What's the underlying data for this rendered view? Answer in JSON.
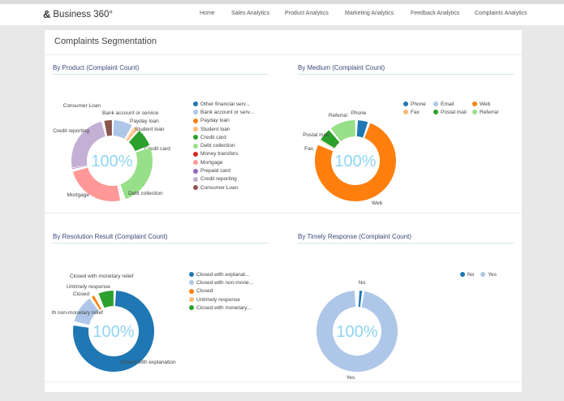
{
  "app": {
    "name": "Business 360°",
    "logo_icon": "ampersand-logo-icon"
  },
  "nav": [
    "Home",
    "Sales Analytics",
    "Product Analytics",
    "Marketing Analytics",
    "Feedback Analytics",
    "Complaints Analytics"
  ],
  "page_title": "Complaints Segmentation",
  "chart_data": [
    {
      "type": "pie",
      "title": "By Product (Complaint Count)",
      "center_label": "100%",
      "legend": "right",
      "categories": [
        "Other financial serv...",
        "Bank account or serv...",
        "Payday loan",
        "Student loan",
        "Credit card",
        "Debt collection",
        "Money transfers",
        "Mortgage",
        "Prepaid card",
        "Credit reporting",
        "Consumer Loan"
      ],
      "slice_labels": [
        "",
        "Bank account or service",
        "Payday loan",
        "Student loan",
        "Credit card",
        "Debt collection",
        "",
        "Mortgage",
        "",
        "Credit reporting",
        "Consumer Loan"
      ],
      "values": [
        0.3,
        8,
        0.5,
        2,
        8,
        26,
        1,
        25,
        0.5,
        24.7,
        4
      ],
      "colors": [
        "#1f77b4",
        "#aec7e8",
        "#ff7f0e",
        "#ffbb78",
        "#2ca02c",
        "#98df8a",
        "#d62728",
        "#ff9896",
        "#9467bd",
        "#c5b0d5",
        "#8c564b"
      ]
    },
    {
      "type": "pie",
      "title": "By Medium (Complaint Count)",
      "center_label": "100%",
      "legend": "top-right",
      "categories": [
        "Phone",
        "Email",
        "Web",
        "Fax",
        "Postal mail",
        "Referral"
      ],
      "slice_labels": [
        "Phone",
        "",
        "Web",
        "Fax",
        "Postal mail",
        "Referral"
      ],
      "values": [
        5,
        0.1,
        77,
        0.6,
        6,
        11.3
      ],
      "colors": [
        "#1f77b4",
        "#aec7e8",
        "#ff7f0e",
        "#ffbb78",
        "#2ca02c",
        "#98df8a"
      ]
    },
    {
      "type": "pie",
      "title": "By Resolution Result (Complaint Count)",
      "center_label": "100%",
      "legend": "right",
      "categories": [
        "Closed with explanat...",
        "Closed with non-mone...",
        "Closed",
        "Untimely response",
        "Closed with monetary..."
      ],
      "slice_labels": [
        "Closed with explanation",
        "th non-monetary relief",
        "Closed",
        "Untimely response",
        "Closed with monetary relief"
      ],
      "values": [
        78,
        12,
        2,
        1,
        7
      ],
      "colors": [
        "#1f77b4",
        "#aec7e8",
        "#ff7f0e",
        "#ffbb78",
        "#2ca02c"
      ]
    },
    {
      "type": "pie",
      "title": "By Timely Response (Complaint Count)",
      "center_label": "100%",
      "legend": "top-right",
      "categories": [
        "No",
        "Yes"
      ],
      "slice_labels": [
        "No",
        "Yes"
      ],
      "values": [
        2,
        98
      ],
      "colors": [
        "#1f77b4",
        "#aec7e8"
      ]
    }
  ]
}
